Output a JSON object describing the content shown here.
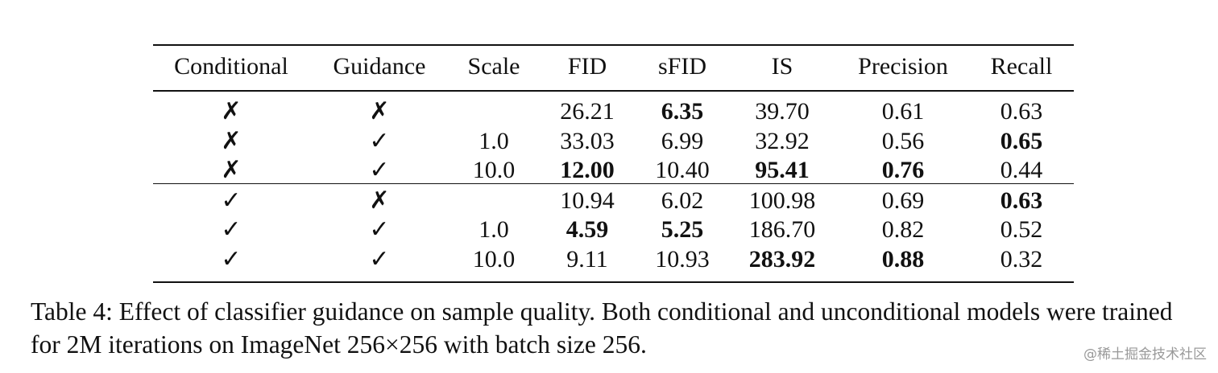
{
  "table": {
    "header": [
      "Conditional",
      "Guidance",
      "Scale",
      "FID",
      "sFID",
      "IS",
      "Precision",
      "Recall"
    ],
    "groups": [
      [
        [
          "✗",
          "✗",
          null,
          "26.21",
          {
            "text": "6.35",
            "bold": true
          },
          "39.70",
          "0.61",
          "0.63"
        ],
        [
          "✗",
          "✓",
          "1.0",
          "33.03",
          "6.99",
          "32.92",
          "0.56",
          {
            "text": "0.65",
            "bold": true
          }
        ],
        [
          "✗",
          "✓",
          "10.0",
          {
            "text": "12.00",
            "bold": true
          },
          "10.40",
          {
            "text": "95.41",
            "bold": true
          },
          {
            "text": "0.76",
            "bold": true
          },
          "0.44"
        ]
      ],
      [
        [
          "✓",
          "✗",
          null,
          "10.94",
          "6.02",
          "100.98",
          "0.69",
          {
            "text": "0.63",
            "bold": true
          }
        ],
        [
          "✓",
          "✓",
          "1.0",
          {
            "text": "4.59",
            "bold": true
          },
          {
            "text": "5.25",
            "bold": true
          },
          "186.70",
          "0.82",
          "0.52"
        ],
        [
          "✓",
          "✓",
          "10.0",
          "9.11",
          "10.93",
          {
            "text": "283.92",
            "bold": true
          },
          {
            "text": "0.88",
            "bold": true
          },
          "0.32"
        ]
      ]
    ]
  },
  "caption": "Table 4: Effect of classifier guidance on sample quality. Both conditional and unconditional models were trained for 2M iterations on ImageNet 256×256 with batch size 256.",
  "watermark": "@稀土掘金技术社区"
}
